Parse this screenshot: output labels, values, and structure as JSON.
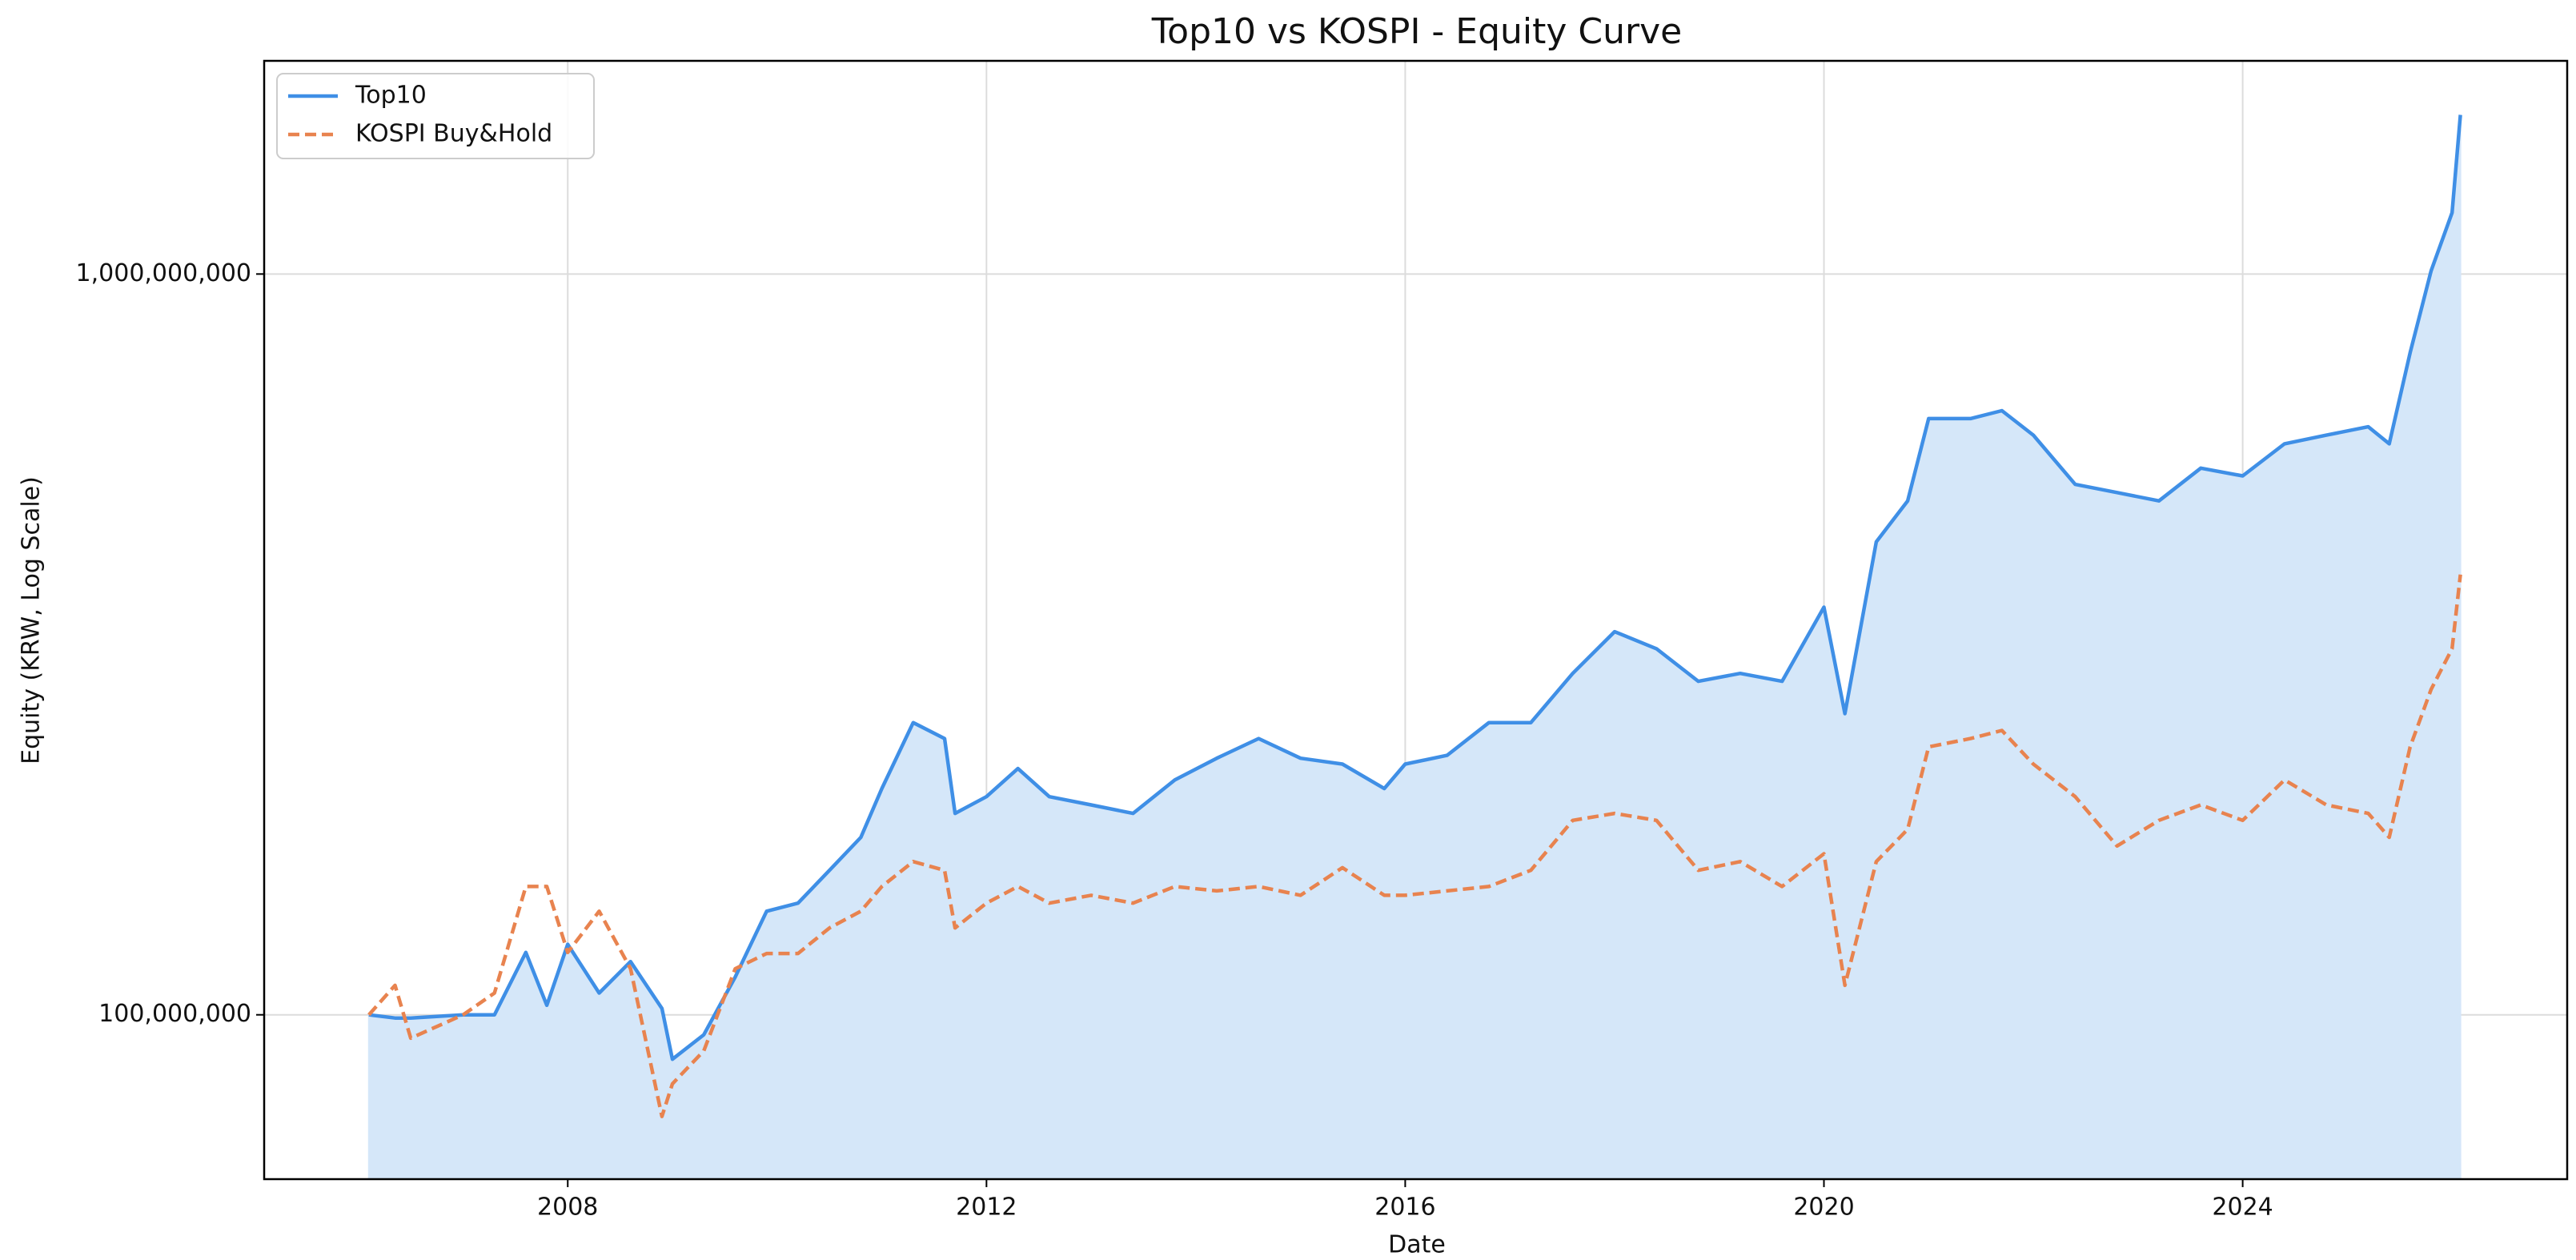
{
  "chart_data": {
    "type": "line",
    "title": "Top10 vs KOSPI - Equity Curve",
    "xlabel": "Date",
    "ylabel": "Equity (KRW, Log Scale)",
    "log_y": true,
    "grid": true,
    "legend": "upper left",
    "xlim": [
      2005.1,
      2027.1
    ],
    "xticks": [
      2008,
      2012,
      2016,
      2020,
      2024
    ],
    "ylim": [
      60000000,
      1940000000
    ],
    "yticks": [
      {
        "value": 100000000,
        "label": "100,000,000"
      },
      {
        "value": 1000000000,
        "label": "1,000,000,000"
      }
    ],
    "x": [
      2006.1,
      2006.35,
      2006.5,
      2007.0,
      2007.3,
      2007.6,
      2007.8,
      2008.0,
      2008.3,
      2008.6,
      2008.9,
      2009.0,
      2009.3,
      2009.6,
      2009.9,
      2010.2,
      2010.5,
      2010.8,
      2011.0,
      2011.3,
      2011.6,
      2011.7,
      2012.0,
      2012.3,
      2012.6,
      2013.0,
      2013.4,
      2013.8,
      2014.2,
      2014.6,
      2015.0,
      2015.4,
      2015.8,
      2016.0,
      2016.4,
      2016.8,
      2017.2,
      2017.6,
      2018.0,
      2018.4,
      2018.8,
      2019.2,
      2019.6,
      2020.0,
      2020.2,
      2020.5,
      2020.8,
      2021.0,
      2021.4,
      2021.7,
      2022.0,
      2022.4,
      2022.8,
      2023.2,
      2023.6,
      2024.0,
      2024.4,
      2024.8,
      2025.2,
      2025.4,
      2025.6,
      2025.8,
      2026.0,
      2026.08
    ],
    "series": [
      {
        "name": "Top10",
        "color": "#3f8fe6",
        "dash": false,
        "fill": "#d5e7f9",
        "values": [
          100000000,
          99000000,
          99000000,
          100000000,
          100000000,
          121400000,
          103000000,
          124500000,
          107000000,
          118000000,
          102000000,
          87100000,
          94000000,
          112500000,
          138000000,
          141500000,
          156700000,
          173600000,
          202000000,
          248000000,
          236000000,
          187000000,
          197000000,
          215000000,
          197000000,
          192000000,
          187000000,
          207500000,
          222000000,
          236000000,
          222000000,
          218000000,
          202000000,
          218000000,
          224000000,
          248000000,
          248000000,
          289000000,
          329000000,
          312000000,
          282000000,
          289000000,
          282000000,
          355000000,
          255000000,
          435000000,
          494000000,
          638000000,
          638000000,
          654000000,
          606000000,
          520000000,
          507000000,
          494000000,
          547000000,
          534000000,
          590000000,
          606000000,
          622000000,
          590000000,
          783000000,
          1010000000,
          1210000000,
          1640000000
        ]
      },
      {
        "name": "KOSPI Buy&Hold",
        "color": "#e8834f",
        "dash": true,
        "values": [
          100000000,
          109600000,
          93000000,
          100000000,
          107000000,
          149000000,
          149000000,
          121400000,
          138000000,
          115400000,
          72900000,
          80700000,
          89400000,
          115400000,
          121000000,
          121000000,
          131000000,
          138000000,
          149000000,
          161000000,
          156700000,
          131000000,
          141500000,
          149000000,
          141500000,
          145000000,
          141500000,
          149000000,
          147000000,
          149000000,
          145000000,
          158000000,
          145000000,
          145000000,
          147000000,
          149000000,
          156700000,
          183000000,
          187000000,
          183000000,
          156700000,
          161000000,
          149000000,
          165000000,
          109600000,
          161000000,
          178000000,
          230000000,
          236000000,
          242000000,
          218000000,
          197000000,
          169000000,
          183000000,
          192000000,
          183000000,
          207500000,
          192000000,
          187000000,
          173600000,
          230000000,
          275000000,
          312000000,
          393000000
        ]
      }
    ]
  }
}
